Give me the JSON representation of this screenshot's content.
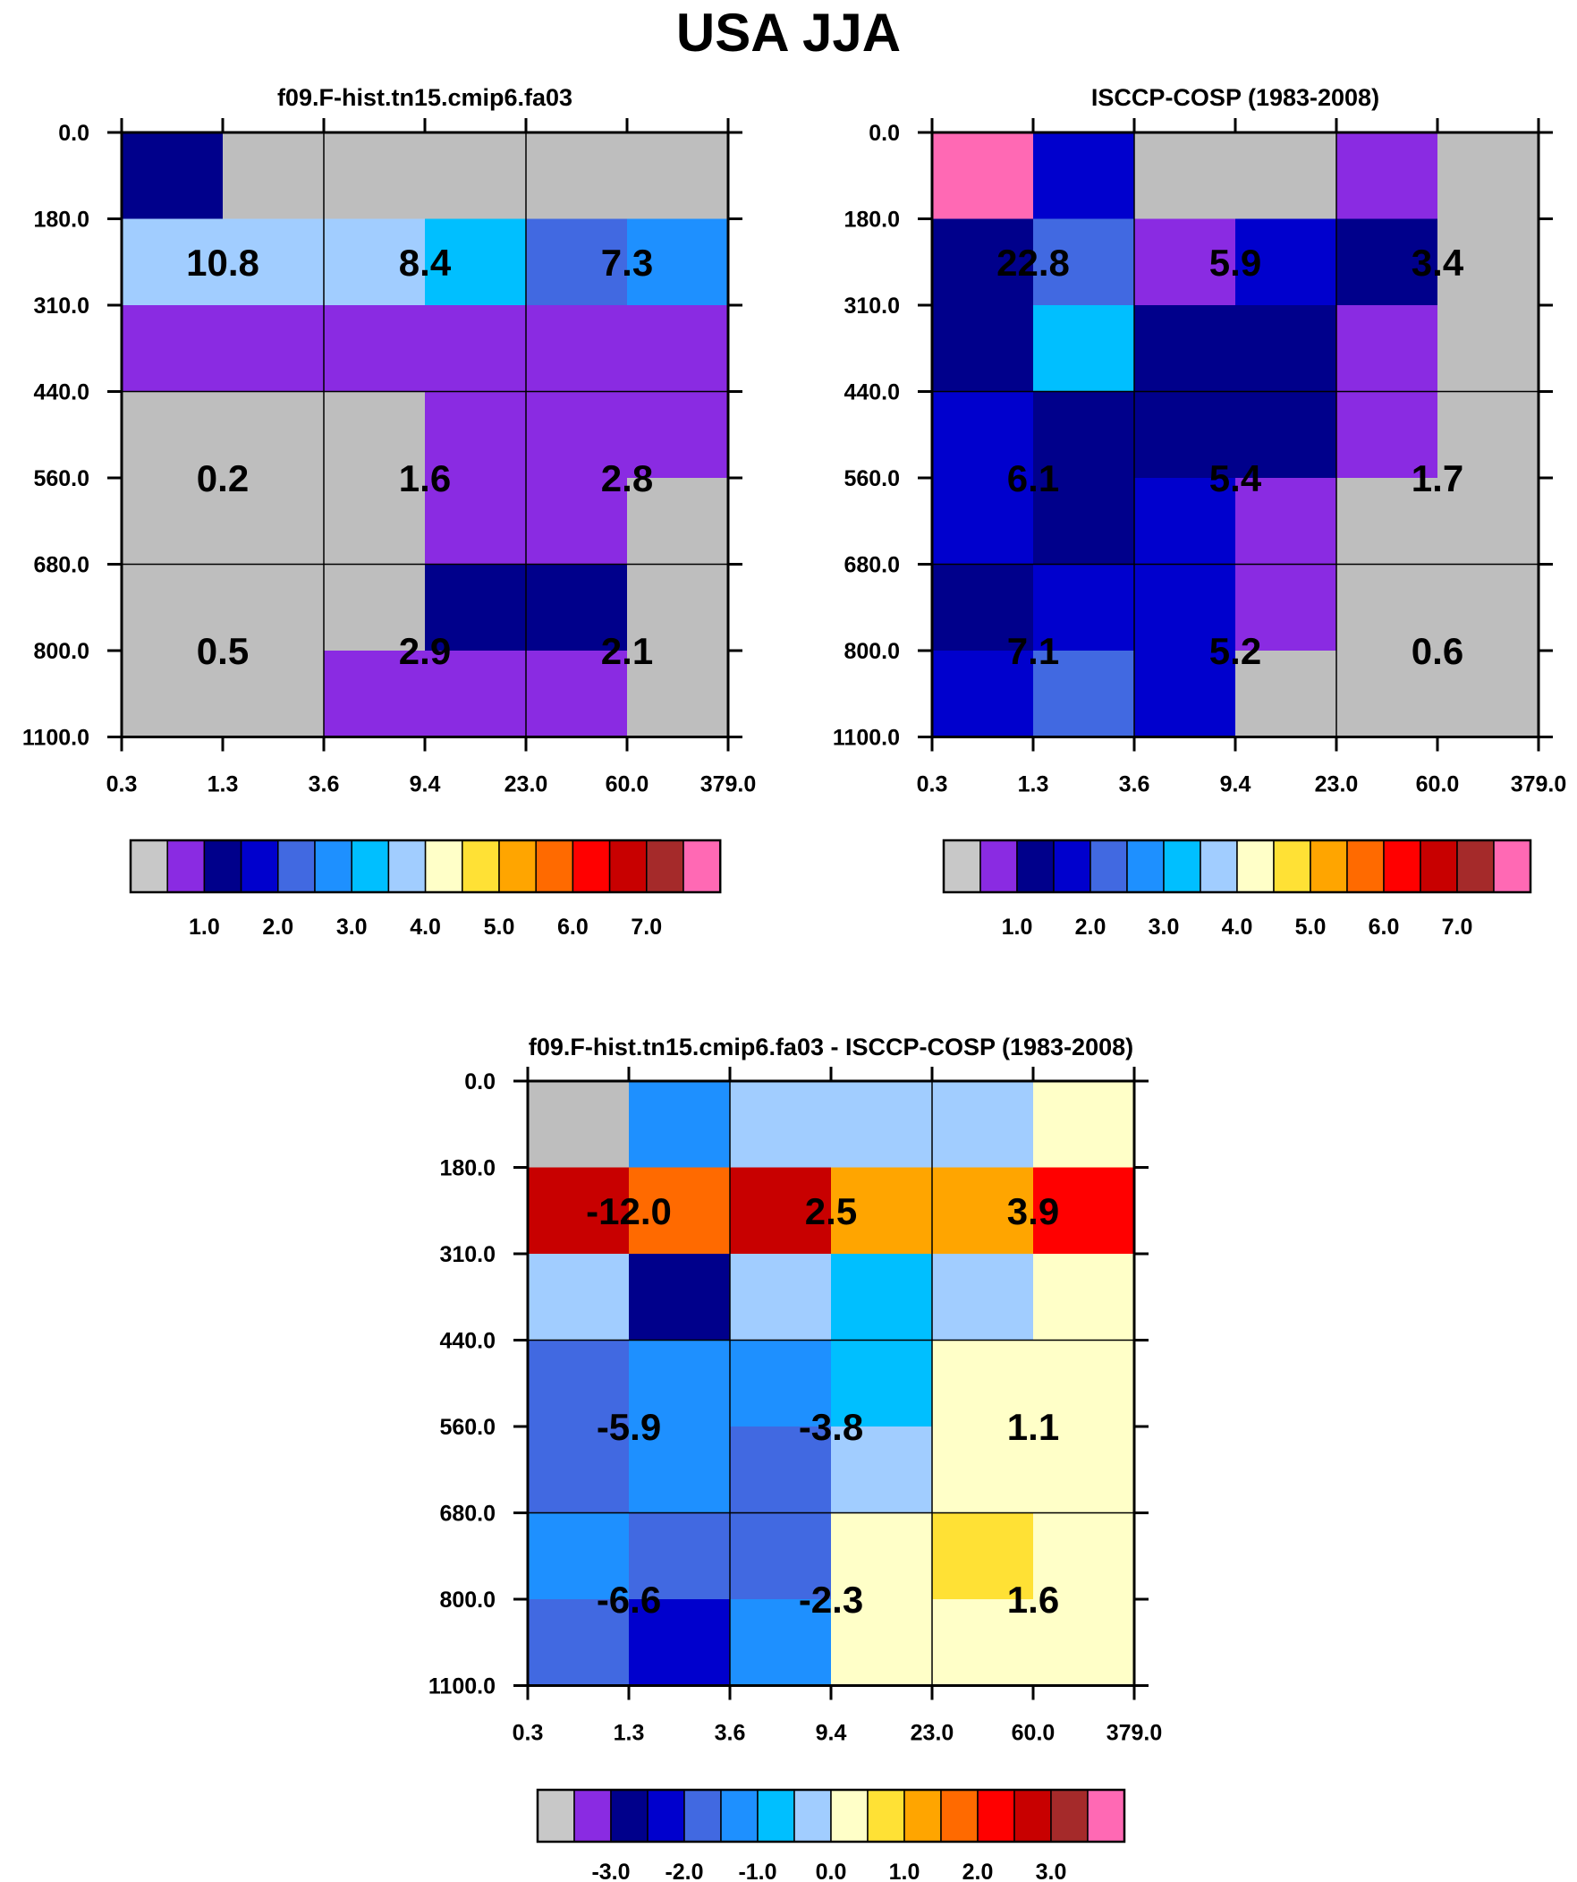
{
  "page_title": "USA JJA",
  "chart_data": [
    {
      "type": "heatmap",
      "title": "f09.F-hist.tn15.cmip6.fa03",
      "x_ticks": [
        "0.3",
        "1.3",
        "3.6",
        "9.4",
        "23.0",
        "60.0",
        "379.0"
      ],
      "y_ticks": [
        "0.0",
        "180.0",
        "310.0",
        "440.0",
        "560.0",
        "680.0",
        "800.0",
        "1100.0"
      ],
      "grid": true,
      "cell_colors": [
        [
          "#00008b",
          "#bebebe",
          "#bebebe",
          "#bebebe",
          "#bebebe",
          "#bebebe"
        ],
        [
          "#a1cdff",
          "#a1cdff",
          "#a1cdff",
          "#00bfff",
          "#4169e1",
          "#1e90ff"
        ],
        [
          "#8a2be2",
          "#8a2be2",
          "#8a2be2",
          "#8a2be2",
          "#8a2be2",
          "#8a2be2"
        ],
        [
          "#bebebe",
          "#bebebe",
          "#bebebe",
          "#8a2be2",
          "#8a2be2",
          "#8a2be2"
        ],
        [
          "#bebebe",
          "#bebebe",
          "#bebebe",
          "#8a2be2",
          "#8a2be2",
          "#bebebe"
        ],
        [
          "#bebebe",
          "#bebebe",
          "#bebebe",
          "#00008b",
          "#00008b",
          "#bebebe"
        ],
        [
          "#bebebe",
          "#bebebe",
          "#8a2be2",
          "#8a2be2",
          "#8a2be2",
          "#bebebe"
        ]
      ],
      "annotations": [
        {
          "col": 1,
          "row": 1.5,
          "text": "10.8"
        },
        {
          "col": 3,
          "row": 1.5,
          "text": "8.4"
        },
        {
          "col": 5,
          "row": 1.5,
          "text": "7.3"
        },
        {
          "col": 1,
          "row": 4,
          "text": "0.2"
        },
        {
          "col": 3,
          "row": 4,
          "text": "1.6"
        },
        {
          "col": 5,
          "row": 4,
          "text": "2.8"
        },
        {
          "col": 1,
          "row": 6,
          "text": "0.5"
        },
        {
          "col": 3,
          "row": 6,
          "text": "2.9"
        },
        {
          "col": 5,
          "row": 6,
          "text": "2.1"
        }
      ],
      "colorbar": {
        "colors": [
          "#c8c8c8",
          "#8a2be2",
          "#00008b",
          "#0000cd",
          "#4169e1",
          "#1e90ff",
          "#00bfff",
          "#a1cdff",
          "#ffffc8",
          "#ffe135",
          "#ffa500",
          "#ff6a00",
          "#ff0000",
          "#c80000",
          "#a52a2a",
          "#ff69b4"
        ],
        "labels": [
          "1.0",
          "2.0",
          "3.0",
          "4.0",
          "5.0",
          "6.0",
          "7.0"
        ],
        "label_boundaries": [
          2,
          4,
          6,
          8,
          10,
          12,
          14
        ]
      }
    },
    {
      "type": "heatmap",
      "title": "ISCCP-COSP (1983-2008)",
      "x_ticks": [
        "0.3",
        "1.3",
        "3.6",
        "9.4",
        "23.0",
        "60.0",
        "379.0"
      ],
      "y_ticks": [
        "0.0",
        "180.0",
        "310.0",
        "440.0",
        "560.0",
        "680.0",
        "800.0",
        "1100.0"
      ],
      "grid": true,
      "cell_colors": [
        [
          "#ff69b4",
          "#0000cd",
          "#bebebe",
          "#bebebe",
          "#8a2be2",
          "#bebebe"
        ],
        [
          "#00008b",
          "#4169e1",
          "#8a2be2",
          "#0000cd",
          "#00008b",
          "#bebebe"
        ],
        [
          "#00008b",
          "#00bfff",
          "#00008b",
          "#00008b",
          "#8a2be2",
          "#bebebe"
        ],
        [
          "#0000cd",
          "#00008b",
          "#00008b",
          "#00008b",
          "#8a2be2",
          "#bebebe"
        ],
        [
          "#0000cd",
          "#00008b",
          "#0000cd",
          "#8a2be2",
          "#bebebe",
          "#bebebe"
        ],
        [
          "#00008b",
          "#0000cd",
          "#0000cd",
          "#8a2be2",
          "#bebebe",
          "#bebebe"
        ],
        [
          "#0000cd",
          "#4169e1",
          "#0000cd",
          "#bebebe",
          "#bebebe",
          "#bebebe"
        ]
      ],
      "annotations": [
        {
          "col": 1,
          "row": 1.5,
          "text": "22.8"
        },
        {
          "col": 3,
          "row": 1.5,
          "text": "5.9"
        },
        {
          "col": 5,
          "row": 1.5,
          "text": "3.4"
        },
        {
          "col": 1,
          "row": 4,
          "text": "6.1"
        },
        {
          "col": 3,
          "row": 4,
          "text": "5.4"
        },
        {
          "col": 5,
          "row": 4,
          "text": "1.7"
        },
        {
          "col": 1,
          "row": 6,
          "text": "7.1"
        },
        {
          "col": 3,
          "row": 6,
          "text": "5.2"
        },
        {
          "col": 5,
          "row": 6,
          "text": "0.6"
        }
      ],
      "colorbar": {
        "colors": [
          "#c8c8c8",
          "#8a2be2",
          "#00008b",
          "#0000cd",
          "#4169e1",
          "#1e90ff",
          "#00bfff",
          "#a1cdff",
          "#ffffc8",
          "#ffe135",
          "#ffa500",
          "#ff6a00",
          "#ff0000",
          "#c80000",
          "#a52a2a",
          "#ff69b4"
        ],
        "labels": [
          "1.0",
          "2.0",
          "3.0",
          "4.0",
          "5.0",
          "6.0",
          "7.0"
        ],
        "label_boundaries": [
          2,
          4,
          6,
          8,
          10,
          12,
          14
        ]
      }
    },
    {
      "type": "heatmap",
      "title": "f09.F-hist.tn15.cmip6.fa03 - ISCCP-COSP (1983-2008)",
      "x_ticks": [
        "0.3",
        "1.3",
        "3.6",
        "9.4",
        "23.0",
        "60.0",
        "379.0"
      ],
      "y_ticks": [
        "0.0",
        "180.0",
        "310.0",
        "440.0",
        "560.0",
        "680.0",
        "800.0",
        "1100.0"
      ],
      "grid": true,
      "cell_colors": [
        [
          "#bebebe",
          "#1e90ff",
          "#a1cdff",
          "#a1cdff",
          "#a1cdff",
          "#ffffc8"
        ],
        [
          "#c80000",
          "#ff6a00",
          "#c80000",
          "#ffa500",
          "#ffa500",
          "#ff0000"
        ],
        [
          "#a1cdff",
          "#00008b",
          "#a1cdff",
          "#00bfff",
          "#a1cdff",
          "#ffffc8"
        ],
        [
          "#4169e1",
          "#1e90ff",
          "#1e90ff",
          "#00bfff",
          "#ffffc8",
          "#ffffc8"
        ],
        [
          "#4169e1",
          "#1e90ff",
          "#4169e1",
          "#a1cdff",
          "#ffffc8",
          "#ffffc8"
        ],
        [
          "#1e90ff",
          "#4169e1",
          "#4169e1",
          "#ffffc8",
          "#ffe135",
          "#ffffc8"
        ],
        [
          "#4169e1",
          "#0000cd",
          "#1e90ff",
          "#ffffc8",
          "#ffffc8",
          "#ffffc8"
        ]
      ],
      "annotations": [
        {
          "col": 1,
          "row": 1.5,
          "text": "-12.0"
        },
        {
          "col": 3,
          "row": 1.5,
          "text": "2.5"
        },
        {
          "col": 5,
          "row": 1.5,
          "text": "3.9"
        },
        {
          "col": 1,
          "row": 4,
          "text": "-5.9"
        },
        {
          "col": 3,
          "row": 4,
          "text": "-3.8"
        },
        {
          "col": 5,
          "row": 4,
          "text": "1.1"
        },
        {
          "col": 1,
          "row": 6,
          "text": "-6.6"
        },
        {
          "col": 3,
          "row": 6,
          "text": "-2.3"
        },
        {
          "col": 5,
          "row": 6,
          "text": "1.6"
        }
      ],
      "colorbar": {
        "colors": [
          "#c8c8c8",
          "#8a2be2",
          "#00008b",
          "#0000cd",
          "#4169e1",
          "#1e90ff",
          "#00bfff",
          "#a1cdff",
          "#ffffc8",
          "#ffe135",
          "#ffa500",
          "#ff6a00",
          "#ff0000",
          "#c80000",
          "#a52a2a",
          "#ff69b4"
        ],
        "labels": [
          "-3.0",
          "-2.0",
          "-1.0",
          "0.0",
          "1.0",
          "2.0",
          "3.0"
        ],
        "label_boundaries": [
          2,
          4,
          6,
          8,
          10,
          12,
          14
        ]
      }
    }
  ]
}
